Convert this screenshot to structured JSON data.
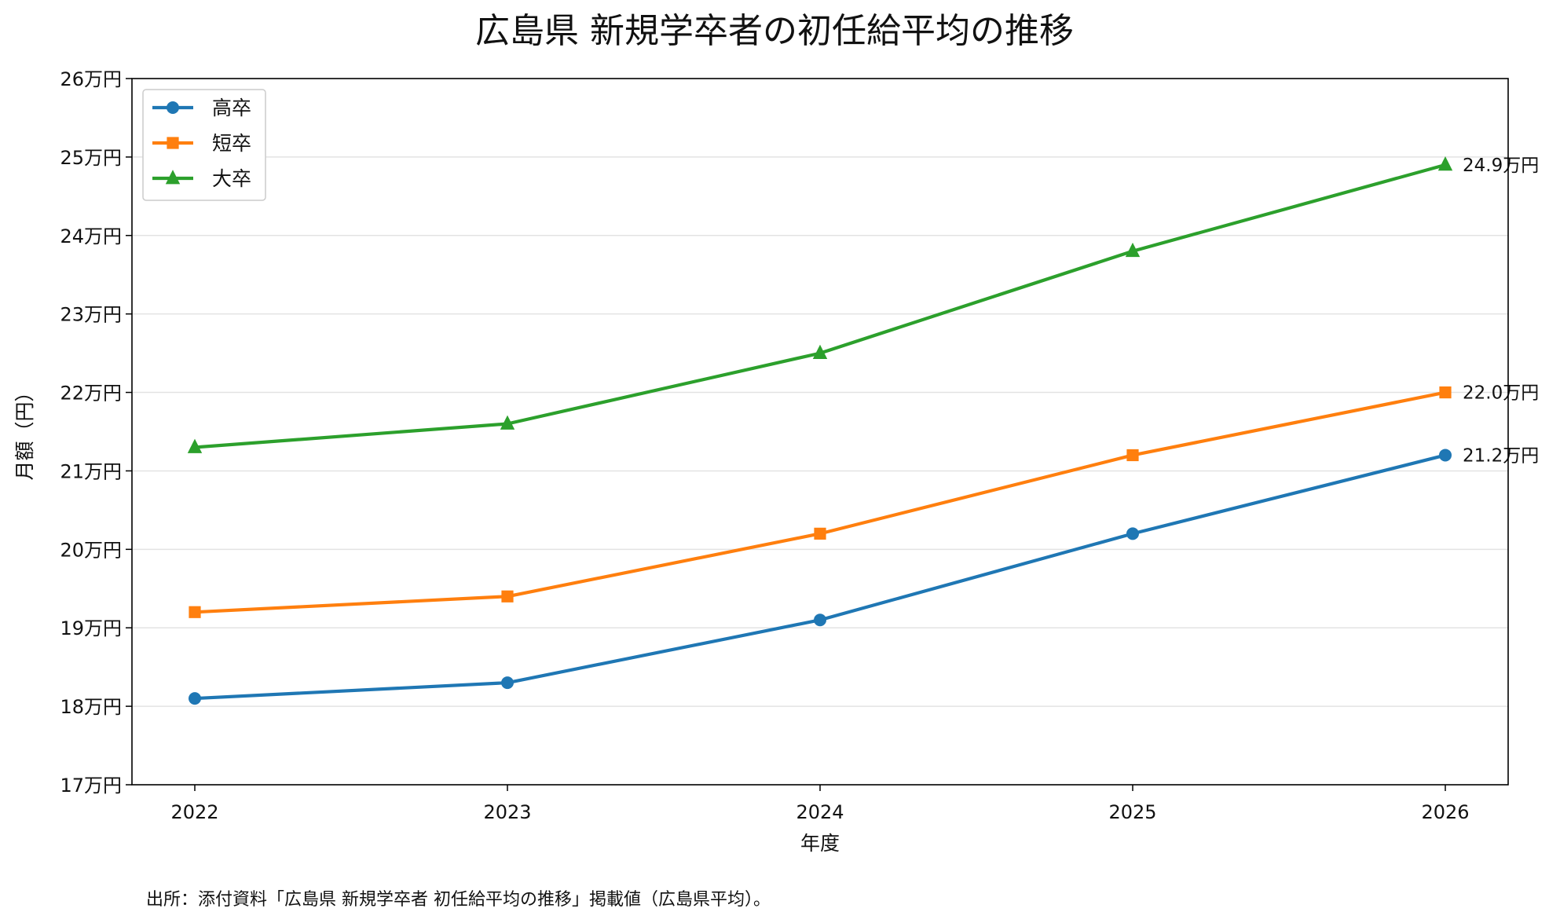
{
  "chart_data": {
    "type": "line",
    "title": "広島県 新規学卒者の初任給平均の推移",
    "xlabel": "年度",
    "ylabel": "月額（円）",
    "x": [
      "2022",
      "2023",
      "2024",
      "2025",
      "2026"
    ],
    "ylim": [
      170000,
      260000
    ],
    "yticks": [
      {
        "value": 170000,
        "label": "17万円"
      },
      {
        "value": 180000,
        "label": "18万円"
      },
      {
        "value": 190000,
        "label": "19万円"
      },
      {
        "value": 200000,
        "label": "20万円"
      },
      {
        "value": 210000,
        "label": "21万円"
      },
      {
        "value": 220000,
        "label": "22万円"
      },
      {
        "value": 230000,
        "label": "23万円"
      },
      {
        "value": 240000,
        "label": "24万円"
      },
      {
        "value": 250000,
        "label": "25万円"
      },
      {
        "value": 260000,
        "label": "26万円"
      }
    ],
    "grid": "horizontal",
    "legend_position": "top-left",
    "series": [
      {
        "name": "高卒",
        "color": "#1f77b4",
        "marker": "circle",
        "values": [
          181000,
          183000,
          191000,
          202000,
          212000
        ],
        "end_label": "21.2万円"
      },
      {
        "name": "短卒",
        "color": "#ff7f0e",
        "marker": "square",
        "values": [
          192000,
          194000,
          202000,
          212000,
          220000
        ],
        "end_label": "22.0万円"
      },
      {
        "name": "大卒",
        "color": "#2ca02c",
        "marker": "triangle",
        "values": [
          213000,
          216000,
          225000,
          238000,
          249000
        ],
        "end_label": "24.9万円"
      }
    ],
    "source_note": "出所：添付資料「広島県 新規学卒者 初任給平均の推移」掲載値（広島県平均）。"
  }
}
